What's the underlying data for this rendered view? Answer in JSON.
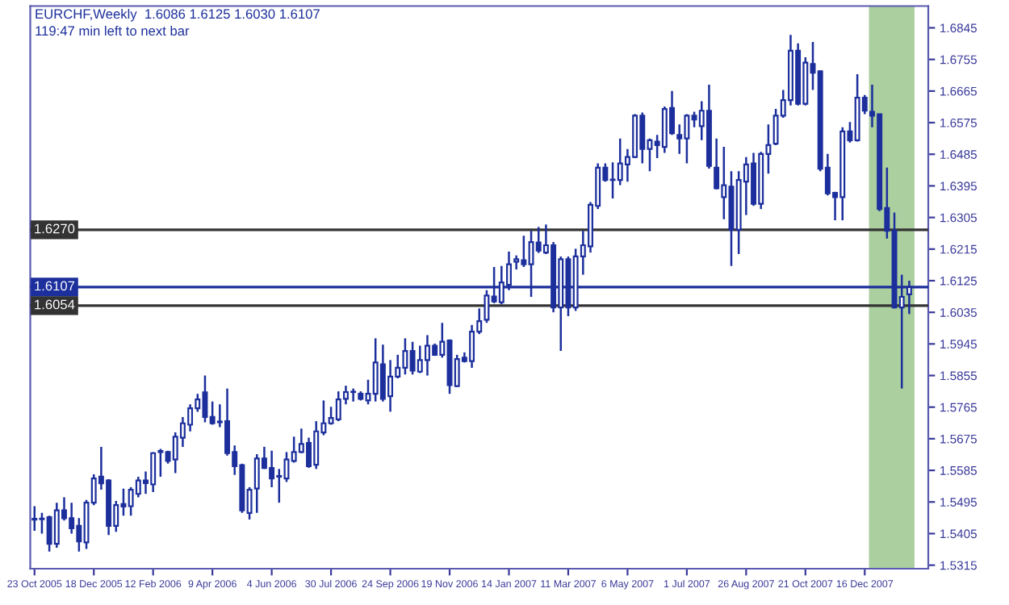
{
  "chart_data": {
    "type": "candlestick",
    "title": "EURCHF,Weekly  1.6086 1.6125 1.6030 1.6107",
    "subtitle": "119:47 min left to next bar",
    "color": "#1c2f9c",
    "x": [
      "2005-10-23",
      "2005-10-30",
      "2005-11-06",
      "2005-11-13",
      "2005-11-20",
      "2005-11-27",
      "2005-12-04",
      "2005-12-11",
      "2005-12-18",
      "2005-12-25",
      "2006-01-01",
      "2006-01-08",
      "2006-01-15",
      "2006-01-22",
      "2006-01-29",
      "2006-02-05",
      "2006-02-12",
      "2006-02-19",
      "2006-02-26",
      "2006-03-05",
      "2006-03-12",
      "2006-03-19",
      "2006-03-26",
      "2006-04-02",
      "2006-04-09",
      "2006-04-16",
      "2006-04-23",
      "2006-04-30",
      "2006-05-07",
      "2006-05-14",
      "2006-05-21",
      "2006-05-28",
      "2006-06-04",
      "2006-06-11",
      "2006-06-18",
      "2006-06-25",
      "2006-07-02",
      "2006-07-09",
      "2006-07-16",
      "2006-07-23",
      "2006-07-30",
      "2006-08-06",
      "2006-08-13",
      "2006-08-20",
      "2006-08-27",
      "2006-09-03",
      "2006-09-10",
      "2006-09-17",
      "2006-09-24",
      "2006-10-01",
      "2006-10-08",
      "2006-10-15",
      "2006-10-22",
      "2006-10-29",
      "2006-11-05",
      "2006-11-12",
      "2006-11-19",
      "2006-11-26",
      "2006-12-03",
      "2006-12-10",
      "2006-12-17",
      "2006-12-24",
      "2006-12-31",
      "2007-01-07",
      "2007-01-14",
      "2007-01-21",
      "2007-01-28",
      "2007-02-04",
      "2007-02-11",
      "2007-02-18",
      "2007-02-25",
      "2007-03-04",
      "2007-03-11",
      "2007-03-18",
      "2007-03-25",
      "2007-04-01",
      "2007-04-08",
      "2007-04-15",
      "2007-04-22",
      "2007-04-29",
      "2007-05-06",
      "2007-05-13",
      "2007-05-20",
      "2007-05-27",
      "2007-06-03",
      "2007-06-10",
      "2007-06-17",
      "2007-06-24",
      "2007-07-01",
      "2007-07-08",
      "2007-07-15",
      "2007-07-22",
      "2007-07-29",
      "2007-08-05",
      "2007-08-12",
      "2007-08-19",
      "2007-08-26",
      "2007-09-02",
      "2007-09-09",
      "2007-09-16",
      "2007-09-23",
      "2007-09-30",
      "2007-10-07",
      "2007-10-14",
      "2007-10-21",
      "2007-10-28",
      "2007-11-04",
      "2007-11-11",
      "2007-11-18",
      "2007-11-25",
      "2007-12-02",
      "2007-12-09",
      "2007-12-16",
      "2007-12-23",
      "2007-12-30",
      "2008-01-06",
      "2008-01-13",
      "2008-01-20",
      "2008-01-27"
    ],
    "ohlc": [
      [
        1.5445,
        1.5483,
        1.5413,
        1.5447
      ],
      [
        1.5446,
        1.5464,
        1.5405,
        1.5448
      ],
      [
        1.5452,
        1.5456,
        1.5354,
        1.5376
      ],
      [
        1.5376,
        1.5493,
        1.5365,
        1.5471
      ],
      [
        1.5471,
        1.5508,
        1.5442,
        1.5449
      ],
      [
        1.5449,
        1.5493,
        1.5405,
        1.542
      ],
      [
        1.5427,
        1.5449,
        1.5354,
        1.5383
      ],
      [
        1.538,
        1.5501,
        1.5361,
        1.5493
      ],
      [
        1.5493,
        1.5574,
        1.5486,
        1.5562
      ],
      [
        1.5567,
        1.5652,
        1.553,
        1.5548
      ],
      [
        1.5556,
        1.556,
        1.5401,
        1.5427
      ],
      [
        1.5427,
        1.5498,
        1.541,
        1.5486
      ],
      [
        1.5489,
        1.5533,
        1.5456,
        1.5482
      ],
      [
        1.5483,
        1.5537,
        1.5456,
        1.553
      ],
      [
        1.5518,
        1.5567,
        1.5508,
        1.5556
      ],
      [
        1.5556,
        1.5582,
        1.5518,
        1.5549
      ],
      [
        1.5545,
        1.5637,
        1.5523,
        1.5634
      ],
      [
        1.5637,
        1.5646,
        1.5567,
        1.564
      ],
      [
        1.5637,
        1.5641,
        1.5604,
        1.5612
      ],
      [
        1.5616,
        1.5693,
        1.5577,
        1.5681
      ],
      [
        1.5678,
        1.5737,
        1.5652,
        1.5719
      ],
      [
        1.5715,
        1.5773,
        1.5696,
        1.5762
      ],
      [
        1.5762,
        1.5803,
        1.5752,
        1.5787
      ],
      [
        1.5807,
        1.5855,
        1.5722,
        1.5737
      ],
      [
        1.5737,
        1.5781,
        1.5715,
        1.5719
      ],
      [
        1.5722,
        1.5773,
        1.5708,
        1.5724
      ],
      [
        1.5725,
        1.5818,
        1.5627,
        1.5634
      ],
      [
        1.5637,
        1.5656,
        1.5572,
        1.5597
      ],
      [
        1.56,
        1.5604,
        1.5464,
        1.5471
      ],
      [
        1.5464,
        1.5537,
        1.5445,
        1.553
      ],
      [
        1.5533,
        1.5631,
        1.5464,
        1.5619
      ],
      [
        1.5619,
        1.5652,
        1.5589,
        1.5592
      ],
      [
        1.5592,
        1.5641,
        1.5537,
        1.5562
      ],
      [
        1.5567,
        1.5589,
        1.5493,
        1.5569
      ],
      [
        1.5562,
        1.5637,
        1.5552,
        1.5616
      ],
      [
        1.5612,
        1.5681,
        1.5607,
        1.5637
      ],
      [
        1.5637,
        1.5704,
        1.5634,
        1.566
      ],
      [
        1.5663,
        1.5678,
        1.5592,
        1.5597
      ],
      [
        1.5601,
        1.5725,
        1.5589,
        1.5696
      ],
      [
        1.5693,
        1.5784,
        1.5685,
        1.5719
      ],
      [
        1.5719,
        1.5766,
        1.5715,
        1.5734
      ],
      [
        1.573,
        1.581,
        1.5725,
        1.5787
      ],
      [
        1.5789,
        1.5826,
        1.5773,
        1.5808
      ],
      [
        1.5808,
        1.5818,
        1.5781,
        1.5809
      ],
      [
        1.5803,
        1.581,
        1.5784,
        1.5789
      ],
      [
        1.5784,
        1.5843,
        1.5773,
        1.5803
      ],
      [
        1.5803,
        1.5961,
        1.5781,
        1.5892
      ],
      [
        1.5887,
        1.5943,
        1.5781,
        1.5789
      ],
      [
        1.5796,
        1.5899,
        1.5752,
        1.5852
      ],
      [
        1.5852,
        1.5914,
        1.5847,
        1.5877
      ],
      [
        1.5877,
        1.5961,
        1.5858,
        1.5925
      ],
      [
        1.5925,
        1.5951,
        1.5858,
        1.5869
      ],
      [
        1.5866,
        1.594,
        1.5862,
        1.5899
      ],
      [
        1.5899,
        1.597,
        1.5855,
        1.594
      ],
      [
        1.594,
        1.5946,
        1.5911,
        1.5914
      ],
      [
        1.5914,
        1.6005,
        1.5906,
        1.5951
      ],
      [
        1.5955,
        1.5958,
        1.5803,
        1.5828
      ],
      [
        1.5825,
        1.5914,
        1.5822,
        1.5902
      ],
      [
        1.5906,
        1.5921,
        1.5892,
        1.5896
      ],
      [
        1.5896,
        1.5999,
        1.5877,
        1.598
      ],
      [
        1.598,
        1.6046,
        1.5973,
        1.601
      ],
      [
        1.6014,
        1.6098,
        1.6005,
        1.6083
      ],
      [
        1.608,
        1.6164,
        1.6061,
        1.6066
      ],
      [
        1.6064,
        1.6167,
        1.6058,
        1.612
      ],
      [
        1.6113,
        1.6208,
        1.6098,
        1.6172
      ],
      [
        1.6179,
        1.6197,
        1.6157,
        1.6186
      ],
      [
        1.6183,
        1.6253,
        1.6164,
        1.6172
      ],
      [
        1.6172,
        1.6267,
        1.6079,
        1.6235
      ],
      [
        1.6234,
        1.6278,
        1.6204,
        1.6211
      ],
      [
        1.6205,
        1.6285,
        1.6201,
        1.6226
      ],
      [
        1.6226,
        1.6235,
        1.6035,
        1.6049
      ],
      [
        1.6049,
        1.6194,
        1.5925,
        1.6186
      ],
      [
        1.6186,
        1.6194,
        1.6024,
        1.6049
      ],
      [
        1.6049,
        1.6216,
        1.6039,
        1.6194
      ],
      [
        1.6194,
        1.6267,
        1.6142,
        1.6226
      ],
      [
        1.6223,
        1.6349,
        1.6205,
        1.6341
      ],
      [
        1.6338,
        1.6459,
        1.6329,
        1.6447
      ],
      [
        1.6447,
        1.6459,
        1.6407,
        1.6412
      ],
      [
        1.6412,
        1.6462,
        1.6359,
        1.6413
      ],
      [
        1.6412,
        1.653,
        1.6397,
        1.6459
      ],
      [
        1.6456,
        1.65,
        1.6407,
        1.6477
      ],
      [
        1.6477,
        1.6599,
        1.6474,
        1.6595
      ],
      [
        1.6595,
        1.6604,
        1.6459,
        1.65
      ],
      [
        1.65,
        1.653,
        1.6437,
        1.6525
      ],
      [
        1.6521,
        1.654,
        1.6474,
        1.6511
      ],
      [
        1.6506,
        1.6621,
        1.6489,
        1.6614
      ],
      [
        1.6617,
        1.6665,
        1.654,
        1.6545
      ],
      [
        1.654,
        1.657,
        1.6486,
        1.653
      ],
      [
        1.653,
        1.6599,
        1.6459,
        1.6595
      ],
      [
        1.6595,
        1.6606,
        1.6562,
        1.6584
      ],
      [
        1.6565,
        1.6636,
        1.6525,
        1.6609
      ],
      [
        1.6609,
        1.6683,
        1.6444,
        1.6452
      ],
      [
        1.6447,
        1.653,
        1.6385,
        1.6388
      ],
      [
        1.6363,
        1.6506,
        1.63,
        1.6397
      ],
      [
        1.6393,
        1.6437,
        1.6167,
        1.627
      ],
      [
        1.627,
        1.6437,
        1.6201,
        1.6412
      ],
      [
        1.6407,
        1.6477,
        1.6312,
        1.6456
      ],
      [
        1.6459,
        1.6489,
        1.6338,
        1.6344
      ],
      [
        1.6344,
        1.6492,
        1.6329,
        1.6486
      ],
      [
        1.6486,
        1.657,
        1.643,
        1.6511
      ],
      [
        1.6515,
        1.6614,
        1.6511,
        1.6595
      ],
      [
        1.6595,
        1.6668,
        1.6589,
        1.6639
      ],
      [
        1.6639,
        1.6825,
        1.6624,
        1.678
      ],
      [
        1.678,
        1.6801,
        1.6624,
        1.6629
      ],
      [
        1.6629,
        1.6761,
        1.6624,
        1.6746
      ],
      [
        1.6742,
        1.6805,
        1.6668,
        1.6717
      ],
      [
        1.6721,
        1.6724,
        1.6437,
        1.6444
      ],
      [
        1.6447,
        1.6486,
        1.6368,
        1.6374
      ],
      [
        1.6375,
        1.6378,
        1.6297,
        1.6363
      ],
      [
        1.6363,
        1.6562,
        1.6297,
        1.655
      ],
      [
        1.655,
        1.6577,
        1.6518,
        1.6525
      ],
      [
        1.6525,
        1.6713,
        1.6521,
        1.6646
      ],
      [
        1.6646,
        1.6654,
        1.6599,
        1.6609
      ],
      [
        1.6606,
        1.6683,
        1.6562,
        1.6595
      ],
      [
        1.6599,
        1.6599,
        1.6323,
        1.6329
      ],
      [
        1.6332,
        1.6447,
        1.6245,
        1.6267
      ],
      [
        1.6267,
        1.6319,
        1.6046,
        1.6049
      ],
      [
        1.6049,
        1.6142,
        1.5818,
        1.6079
      ],
      [
        1.6086,
        1.6125,
        1.603,
        1.6107
      ]
    ],
    "xlim": [
      "2005-10-19",
      "2008-02-14"
    ],
    "xticks": [
      {
        "value": "2005-10-23",
        "label": "23 Oct 2005"
      },
      {
        "value": "2005-12-18",
        "label": "18 Dec 2005"
      },
      {
        "value": "2006-02-12",
        "label": "12 Feb 2006"
      },
      {
        "value": "2006-04-09",
        "label": "9 Apr 2006"
      },
      {
        "value": "2006-06-04",
        "label": "4 Jun 2006"
      },
      {
        "value": "2006-07-30",
        "label": "30 Jul 2006"
      },
      {
        "value": "2006-09-24",
        "label": "24 Sep 2006"
      },
      {
        "value": "2006-11-19",
        "label": "19 Nov 2006"
      },
      {
        "value": "2007-01-14",
        "label": "14 Jan 2007"
      },
      {
        "value": "2007-03-11",
        "label": "11 Mar 2007"
      },
      {
        "value": "2007-05-06",
        "label": "6 May 2007"
      },
      {
        "value": "2007-07-01",
        "label": "1 Jul 2007"
      },
      {
        "value": "2007-08-26",
        "label": "26 Aug 2007"
      },
      {
        "value": "2007-10-21",
        "label": "21 Oct 2007"
      },
      {
        "value": "2007-12-16",
        "label": "16 Dec 2007"
      }
    ],
    "ylim": [
      1.5305,
      1.6907
    ],
    "yticks": [
      1.6845,
      1.6755,
      1.6665,
      1.6575,
      1.6485,
      1.6395,
      1.6305,
      1.6215,
      1.6125,
      1.6035,
      1.5945,
      1.5855,
      1.5765,
      1.5675,
      1.5585,
      1.5495,
      1.5405,
      1.5315
    ],
    "ref_lines": [
      {
        "axis": "y",
        "value": 1.627,
        "label": "1.6270",
        "color": "#333333"
      },
      {
        "axis": "y",
        "value": 1.6107,
        "label": "1.6107",
        "color": "#1c2f9c"
      },
      {
        "axis": "y",
        "value": 1.6054,
        "label": "1.6054",
        "color": "#333333"
      }
    ],
    "bands": [
      {
        "axis": "x",
        "from": "2007-12-20",
        "to": "2008-02-01",
        "color": "#8fbf7f"
      }
    ],
    "grid": false,
    "legend": false
  }
}
